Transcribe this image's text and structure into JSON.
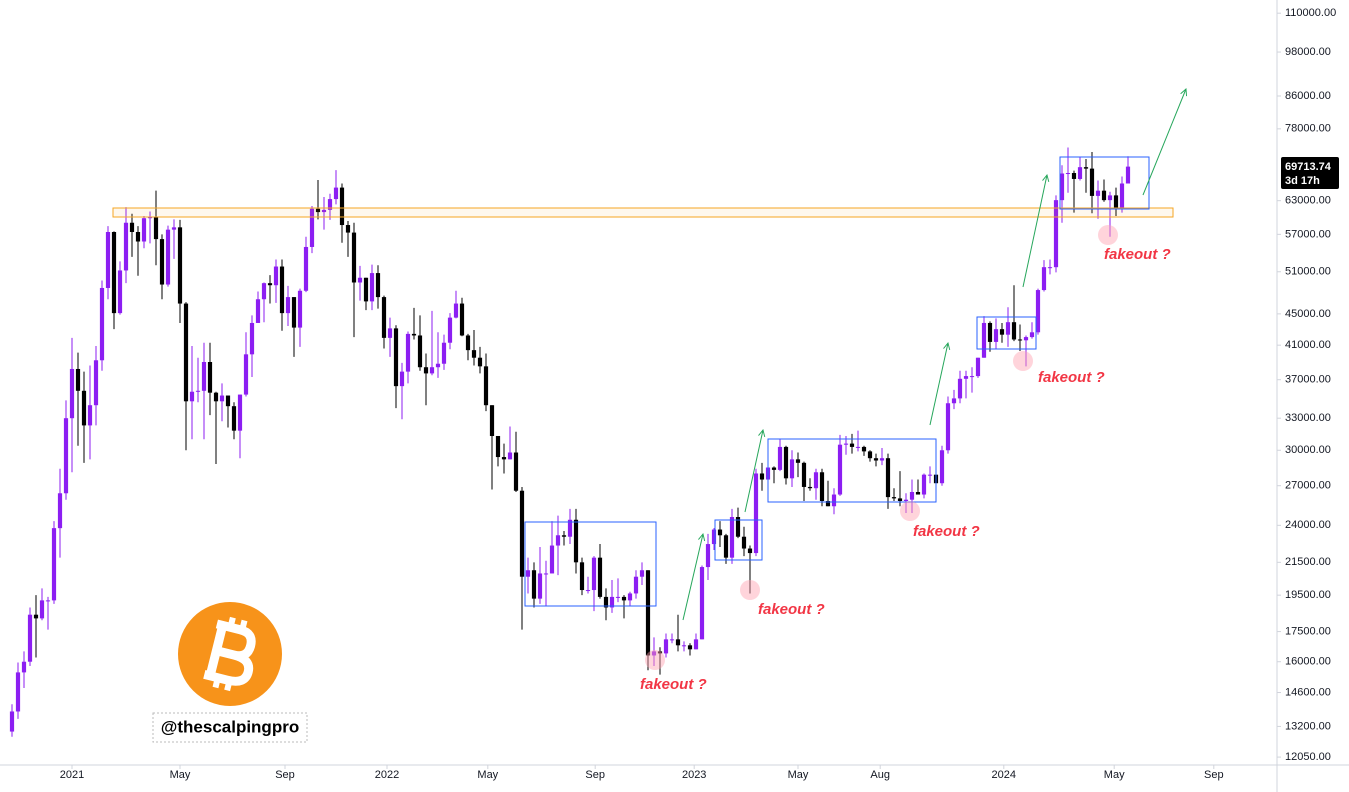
{
  "chart_data": {
    "type": "candlestick",
    "log_scale": true,
    "grid": false,
    "up_color": "#8c1ef2",
    "down_color": "#000000",
    "xlim": [
      -2,
      210.5
    ],
    "ylim": [
      11770,
      114400
    ],
    "xticks": [
      {
        "value": 10,
        "label": "2021"
      },
      {
        "value": 28,
        "label": "May"
      },
      {
        "value": 45.5,
        "label": "Sep"
      },
      {
        "value": 62.5,
        "label": "2022"
      },
      {
        "value": 79.3,
        "label": "May"
      },
      {
        "value": 97.2,
        "label": "Sep"
      },
      {
        "value": 113.7,
        "label": "2023"
      },
      {
        "value": 131,
        "label": "May"
      },
      {
        "value": 144.7,
        "label": "Aug"
      },
      {
        "value": 165.3,
        "label": "2024"
      },
      {
        "value": 183.7,
        "label": "May"
      },
      {
        "value": 200.3,
        "label": "Sep"
      }
    ],
    "yticks": [
      {
        "value": 110000,
        "label": "110000.00"
      },
      {
        "value": 98000,
        "label": "98000.00"
      },
      {
        "value": 86000,
        "label": "86000.00"
      },
      {
        "value": 78000,
        "label": "78000.00"
      },
      {
        "value": 63000,
        "label": "63000.00"
      },
      {
        "value": 57000,
        "label": "57000.00"
      },
      {
        "value": 51000,
        "label": "51000.00"
      },
      {
        "value": 45000,
        "label": "45000.00"
      },
      {
        "value": 41000,
        "label": "41000.00"
      },
      {
        "value": 37000,
        "label": "37000.00"
      },
      {
        "value": 33000,
        "label": "33000.00"
      },
      {
        "value": 30000,
        "label": "30000.00"
      },
      {
        "value": 27000,
        "label": "27000.00"
      },
      {
        "value": 24000,
        "label": "24000.00"
      },
      {
        "value": 21500,
        "label": "21500.00"
      },
      {
        "value": 19500,
        "label": "19500.00"
      },
      {
        "value": 17500,
        "label": "17500.00"
      },
      {
        "value": 16000,
        "label": "16000.00"
      },
      {
        "value": 14600,
        "label": "14600.00"
      },
      {
        "value": 13200,
        "label": "13200.00"
      },
      {
        "value": 12050,
        "label": "12050.00"
      }
    ],
    "countdown": "3d 17h",
    "annotations": [
      "fakeout ?",
      "fakeout ?",
      "fakeout ?",
      "fakeout ?",
      "fakeout ?"
    ],
    "watermark": "@thescalpingpro",
    "open": [
      13000,
      13800,
      15500,
      16000,
      18400,
      18200,
      19200,
      19200,
      23800,
      26400,
      33000,
      38200,
      35800,
      32300,
      34300,
      39200,
      48600,
      57400,
      45100,
      51200,
      59000,
      57400,
      55800,
      59800,
      60000,
      56200,
      49100,
      57800,
      58200,
      46400,
      34700,
      35700,
      35800,
      39000,
      35600,
      34700,
      35300,
      34200,
      31800,
      35400,
      39900,
      43800,
      47000,
      49300,
      49000,
      51800,
      45100,
      47300,
      43200,
      48200,
      54900,
      61500,
      60900,
      61300,
      63300,
      65500,
      58600,
      57300,
      49400,
      50100,
      46700,
      50800,
      47300,
      41900,
      43100,
      36300,
      37900,
      42400,
      42200,
      38400,
      37700,
      38400,
      38800,
      41300,
      44500,
      46400,
      42200,
      40400,
      39500,
      38500,
      34300,
      31300,
      29400,
      29200,
      29800,
      26600,
      20600,
      21000,
      19300,
      20800,
      20800,
      22600,
      23300,
      23200,
      24400,
      21500,
      19800,
      19800,
      21800,
      19400,
      18800,
      19400,
      19400,
      19200,
      19600,
      20600,
      21000,
      16300,
      16500,
      16400,
      17100,
      17100,
      16800,
      16800,
      16600,
      17100,
      21200,
      22700,
      23700,
      23300,
      21800,
      24600,
      23200,
      22400,
      22100,
      28000,
      27500,
      28500,
      28300,
      30300,
      27600,
      29200,
      28900,
      26900,
      26800,
      28100,
      25800,
      25400,
      26300,
      30500,
      30600,
      30300,
      30300,
      29900,
      29300,
      29100,
      29300,
      26100,
      26000,
      25800,
      25900,
      26500,
      26300,
      27900,
      27900,
      27200,
      30000,
      34500,
      35000,
      37100,
      37400,
      37400,
      39500,
      43800,
      41400,
      43000,
      42300,
      43900,
      41700,
      41600,
      42000,
      42600,
      48300,
      51700,
      51700,
      63100,
      68300,
      68400,
      67200,
      69600,
      69300,
      63900,
      64900,
      63100,
      64000,
      61500,
      66300
    ],
    "high": [
      14100,
      15960,
      16500,
      18800,
      19500,
      19900,
      19400,
      24300,
      28400,
      34800,
      41900,
      40100,
      37900,
      38600,
      40900,
      49700,
      58400,
      57500,
      52600,
      61800,
      60600,
      58400,
      60200,
      61000,
      64900,
      57000,
      58500,
      59600,
      59500,
      46600,
      40900,
      39500,
      41300,
      41300,
      35700,
      36600,
      35300,
      34600,
      35400,
      42600,
      44800,
      48100,
      49400,
      50500,
      52900,
      52900,
      48900,
      47300,
      48500,
      56600,
      62000,
      67000,
      63700,
      64300,
      69000,
      66300,
      59300,
      59000,
      51900,
      50100,
      52100,
      52000,
      47500,
      44500,
      43500,
      38900,
      42700,
      45800,
      44800,
      40000,
      45400,
      42600,
      42300,
      45100,
      48200,
      47200,
      42400,
      42900,
      40800,
      40000,
      34300,
      31300,
      30600,
      32200,
      31700,
      26900,
      21800,
      21500,
      22500,
      21600,
      24300,
      24700,
      23600,
      25200,
      25200,
      21800,
      20600,
      21900,
      22700,
      19900,
      20400,
      20500,
      19500,
      19700,
      21000,
      21500,
      21000,
      17200,
      16700,
      17400,
      17400,
      18400,
      17000,
      16900,
      17400,
      21300,
      23400,
      23800,
      24300,
      23400,
      25200,
      25300,
      23900,
      22600,
      28400,
      28900,
      29200,
      28600,
      31000,
      30400,
      30000,
      29800,
      29000,
      27600,
      28400,
      28400,
      27400,
      26800,
      31400,
      31300,
      31500,
      31800,
      30400,
      30000,
      29700,
      30200,
      29700,
      26800,
      28200,
      26400,
      27500,
      27500,
      28000,
      28600,
      28000,
      30400,
      35200,
      35900,
      38000,
      38000,
      38400,
      39500,
      44700,
      44000,
      44400,
      43800,
      45900,
      49000,
      43600,
      42200,
      43900,
      48500,
      52800,
      52900,
      64000,
      70000,
      73800,
      68900,
      71800,
      71300,
      72800,
      66900,
      67100,
      64700,
      65500,
      67700,
      71900
    ],
    "low": [
      12800,
      13500,
      14800,
      15800,
      16200,
      18100,
      17600,
      19000,
      21800,
      25900,
      28100,
      30400,
      28900,
      29200,
      32300,
      38000,
      47000,
      43000,
      44900,
      49300,
      53300,
      50400,
      54700,
      55500,
      52000,
      47000,
      48800,
      53000,
      43800,
      30000,
      31000,
      34600,
      31000,
      33300,
      28800,
      32700,
      32100,
      31000,
      29300,
      35200,
      37300,
      43800,
      43900,
      46400,
      46500,
      42800,
      43400,
      39600,
      40800,
      48000,
      53900,
      59600,
      57800,
      59500,
      62300,
      55600,
      53300,
      42000,
      46800,
      45500,
      45500,
      45700,
      40600,
      39600,
      34000,
      32900,
      36600,
      41700,
      38000,
      34300,
      37500,
      37200,
      38100,
      40500,
      44400,
      42100,
      39200,
      38600,
      37700,
      33700,
      26700,
      28600,
      28000,
      29200,
      26500,
      17600,
      19600,
      18800,
      19000,
      18900,
      20800,
      20700,
      22600,
      22700,
      20800,
      19500,
      19600,
      18600,
      19300,
      18100,
      18500,
      19100,
      18200,
      18900,
      19300,
      20100,
      15600,
      15800,
      15400,
      16200,
      16900,
      16500,
      16500,
      16300,
      16600,
      17100,
      20400,
      22300,
      22500,
      21400,
      21400,
      23100,
      21900,
      19600,
      21900,
      26600,
      26500,
      27200,
      28200,
      27100,
      26900,
      27700,
      25800,
      26600,
      25900,
      25400,
      25400,
      24800,
      26200,
      29600,
      29700,
      29900,
      29500,
      29000,
      28600,
      28700,
      25200,
      25800,
      25400,
      24900,
      24900,
      26400,
      26000,
      27200,
      26500,
      27000,
      29700,
      33900,
      34500,
      35000,
      35600,
      37200,
      39500,
      40200,
      40500,
      41300,
      40800,
      41500,
      40300,
      38500,
      41800,
      42300,
      48100,
      50600,
      50900,
      59000,
      64500,
      60800,
      66900,
      64500,
      60700,
      59700,
      62800,
      56600,
      60200,
      60800,
      66300
    ],
    "close": [
      13800,
      15500,
      16000,
      18400,
      18200,
      19200,
      19200,
      23800,
      26400,
      33000,
      38200,
      35800,
      32300,
      34300,
      39200,
      48600,
      57400,
      45100,
      51200,
      59000,
      57400,
      55800,
      59800,
      60000,
      56200,
      49100,
      57800,
      58200,
      46400,
      34700,
      35700,
      35800,
      39000,
      35600,
      34700,
      35300,
      34200,
      31800,
      35400,
      39900,
      43800,
      47000,
      49300,
      49000,
      51800,
      45100,
      47300,
      43200,
      48200,
      54900,
      61500,
      60900,
      61300,
      63300,
      65500,
      58600,
      57300,
      49400,
      50100,
      46700,
      50800,
      47300,
      41900,
      43100,
      36300,
      37900,
      42400,
      42200,
      38400,
      37700,
      38400,
      38800,
      41300,
      44500,
      46400,
      42200,
      40400,
      39500,
      38500,
      34300,
      31300,
      29400,
      29200,
      29800,
      26600,
      20600,
      21000,
      19300,
      20800,
      20800,
      22600,
      23300,
      23200,
      24400,
      21500,
      19800,
      19800,
      21800,
      19400,
      18800,
      19400,
      19400,
      19200,
      19600,
      20600,
      21000,
      16300,
      16500,
      16400,
      17100,
      17100,
      16800,
      16800,
      16600,
      17100,
      21200,
      22700,
      23700,
      23300,
      21800,
      24600,
      23200,
      22400,
      22100,
      28000,
      27500,
      28500,
      28300,
      30300,
      27600,
      29200,
      28900,
      26900,
      26800,
      28100,
      25800,
      25400,
      26300,
      30500,
      30600,
      30300,
      30300,
      29900,
      29300,
      29100,
      29300,
      26100,
      26000,
      25800,
      25900,
      26500,
      26300,
      27900,
      27900,
      27200,
      30000,
      34500,
      35000,
      37100,
      37400,
      37400,
      39500,
      43800,
      41400,
      43000,
      42300,
      43900,
      41700,
      41600,
      42000,
      42600,
      48300,
      51700,
      51700,
      63100,
      68300,
      68400,
      67200,
      69600,
      69300,
      63900,
      64900,
      63100,
      64000,
      61500,
      66300,
      69713.74
    ]
  }
}
